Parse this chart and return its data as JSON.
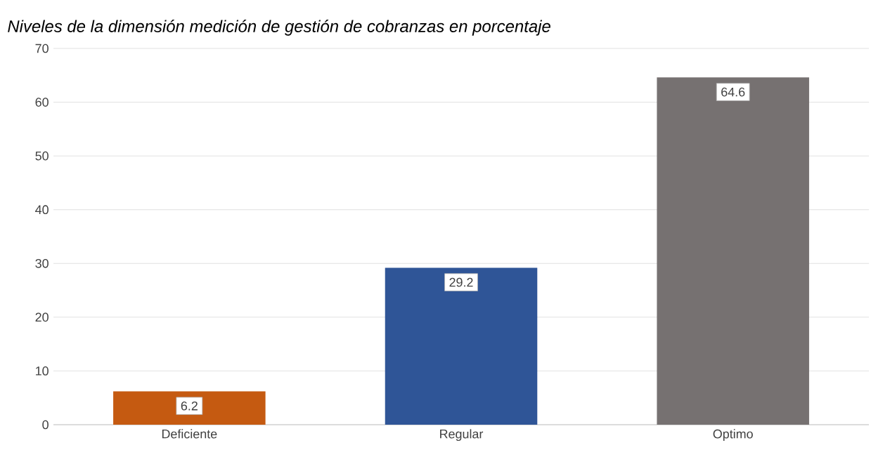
{
  "chart_data": {
    "type": "bar",
    "title": "*Niveles de la dimensión medición de gestión de cobranzas en porcentaje*",
    "categories": [
      "Deficiente",
      "Regular",
      "Optimo"
    ],
    "values": [
      6.2,
      29.2,
      64.6
    ],
    "colors": [
      "#c55a11",
      "#2f5597",
      "#767171"
    ],
    "ylim": [
      0,
      70
    ],
    "yticks": [
      0,
      10,
      20,
      30,
      40,
      50,
      60,
      70
    ],
    "grid": "y",
    "data_labels": true
  }
}
